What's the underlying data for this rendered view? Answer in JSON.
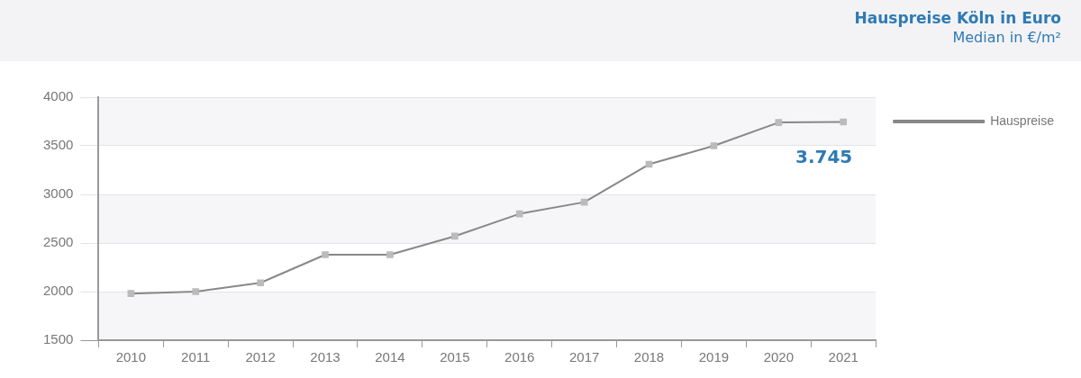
{
  "chart_data": {
    "type": "line",
    "title": "Hauspreise Köln in Euro",
    "subtitle": "Median in €/m²",
    "categories": [
      "2010",
      "2011",
      "2012",
      "2013",
      "2014",
      "2015",
      "2016",
      "2017",
      "2018",
      "2019",
      "2020",
      "2021"
    ],
    "series": [
      {
        "name": "Hauspreise",
        "color": "#888888",
        "values": [
          1980,
          2000,
          2090,
          2380,
          2380,
          2570,
          2800,
          2920,
          3310,
          3500,
          3740,
          3745
        ],
        "value_labels": [
          null,
          null,
          null,
          null,
          null,
          null,
          null,
          null,
          null,
          null,
          null,
          "3.745"
        ]
      }
    ],
    "ylim": [
      1500,
      4000
    ],
    "yticks": [
      1500,
      2000,
      2500,
      3000,
      3500,
      4000
    ],
    "grid": "y",
    "legend": "top right",
    "marker": "square"
  }
}
